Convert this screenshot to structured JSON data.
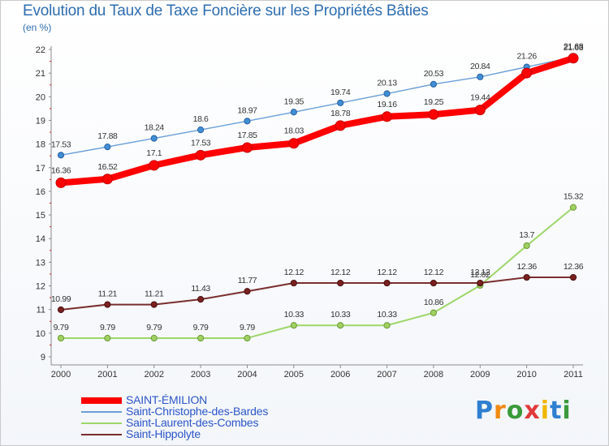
{
  "title": "Evolution du Taux de Taxe Foncière sur les Propriétés Bâties",
  "unit_label": "(en %)",
  "logo": {
    "text": "Proxiti",
    "colors": [
      "#2f7fd0",
      "#f08a12",
      "#3a9a3a",
      "#e03a3a",
      "#f0b700",
      "#2f7fd0",
      "#3a9a3a"
    ]
  },
  "chart_data": {
    "type": "line",
    "title": "Evolution du Taux de Taxe Foncière sur les Propriétés Bâties",
    "ylabel": "(en %)",
    "xlabel": "",
    "ylim": [
      9,
      22
    ],
    "yticks": [
      9,
      10,
      11,
      12,
      13,
      14,
      15,
      16,
      17,
      18,
      19,
      20,
      21,
      22
    ],
    "grid": false,
    "categories": [
      "2000",
      "2001",
      "2002",
      "2003",
      "2004",
      "2005",
      "2006",
      "2007",
      "2008",
      "2009",
      "2010",
      "2011"
    ],
    "series": [
      {
        "name": "SAINT-ÉMILION",
        "color": "#ff0000",
        "values": [
          16.36,
          16.52,
          17.1,
          17.53,
          17.85,
          18.03,
          18.78,
          19.16,
          19.25,
          19.44,
          21.0,
          21.63
        ],
        "labels": [
          "16.36",
          "16.52",
          "17.1",
          "17.53",
          "17.85",
          "18.03",
          "18.78",
          "19.16",
          "19.25",
          "19.44",
          "",
          "21.63"
        ]
      },
      {
        "name": "Saint-Christophe-des-Bardes",
        "color": "#6a9fd8",
        "values": [
          17.53,
          17.88,
          18.24,
          18.6,
          18.97,
          19.35,
          19.74,
          20.13,
          20.53,
          20.84,
          21.26,
          21.68
        ],
        "labels": [
          "17.53",
          "17.88",
          "18.24",
          "18.6",
          "18.97",
          "19.35",
          "19.74",
          "20.13",
          "20.53",
          "20.84",
          "21.26",
          "21.68"
        ]
      },
      {
        "name": "Saint-Laurent-des-Combes",
        "color": "#9ed66a",
        "values": [
          9.79,
          9.79,
          9.79,
          9.79,
          9.79,
          10.33,
          10.33,
          10.33,
          10.86,
          12.02,
          13.7,
          15.32
        ],
        "labels": [
          "9.79",
          "9.79",
          "9.79",
          "9.79",
          "9.79",
          "10.33",
          "10.33",
          "10.33",
          "10.86",
          "12.02",
          "13.7",
          "15.32"
        ]
      },
      {
        "name": "Saint-Hippolyte",
        "color": "#7a2e2e",
        "values": [
          10.99,
          11.21,
          11.21,
          11.43,
          11.77,
          12.12,
          12.12,
          12.12,
          12.12,
          12.12,
          12.36,
          12.36
        ],
        "labels": [
          "10.99",
          "11.21",
          "11.21",
          "11.43",
          "11.77",
          "12.12",
          "12.12",
          "12.12",
          "12.12",
          "12.12",
          "12.36",
          "12.36"
        ]
      }
    ]
  }
}
